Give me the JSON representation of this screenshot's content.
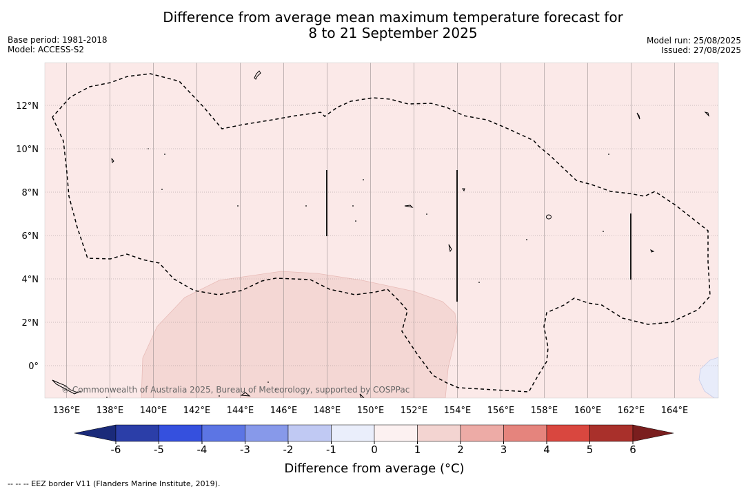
{
  "header": {
    "title_line1": "Difference from average mean maximum temperature forecast for",
    "title_line2": "8 to 21 September 2025",
    "base_period": "Base period: 1981-2018",
    "model": "Model: ACCESS-S2",
    "model_run": "Model run: 25/08/2025",
    "issued": "Issued: 27/08/2025"
  },
  "map": {
    "lon_labels": [
      "136°E",
      "138°E",
      "140°E",
      "142°E",
      "144°E",
      "146°E",
      "148°E",
      "150°E",
      "152°E",
      "154°E",
      "156°E",
      "158°E",
      "160°E",
      "162°E",
      "164°E"
    ],
    "lon_values": [
      136,
      138,
      140,
      142,
      144,
      146,
      148,
      150,
      152,
      154,
      156,
      158,
      160,
      162,
      164
    ],
    "lat_labels": [
      "12°N",
      "10°N",
      "8°N",
      "6°N",
      "4°N",
      "2°N",
      "0°"
    ],
    "lat_values": [
      12,
      10,
      8,
      6,
      4,
      2,
      0
    ],
    "copyright": "© Commonwealth of Australia 2025, Bureau of Meteorology, supported by COSPPac",
    "fill_colors": {
      "background": "#fbe9e8",
      "warm_anomaly": "#f4d7d4",
      "cool_anomaly": "#e8ecfa"
    }
  },
  "legend": {
    "title": "Difference from average (°C)",
    "ticks": [
      "-6",
      "-5",
      "-4",
      "-3",
      "-2",
      "-1",
      "0",
      "1",
      "2",
      "3",
      "4",
      "5",
      "6"
    ],
    "colors": [
      "#2b3ea8",
      "#3550de",
      "#5c75e4",
      "#8799ea",
      "#c0c9f3",
      "#eaeefb",
      "#fcf1f1",
      "#f3d4d1",
      "#edaba6",
      "#e5847d",
      "#d9473f",
      "#a9302b"
    ],
    "under_color": "#1a2a7a",
    "over_color": "#7a1e1e"
  },
  "footer": {
    "eez_note": "--  --  -- EEZ border V11 (Flanders Marine Institute, 2019)."
  }
}
